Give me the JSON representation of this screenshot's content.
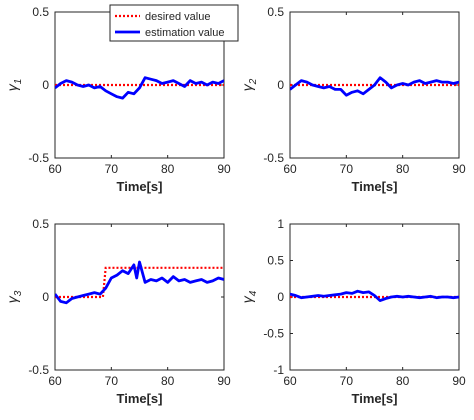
{
  "chart_data": [
    {
      "type": "line",
      "xlabel": "Time[s]",
      "ylabel": "γ1",
      "xlim": [
        60,
        90
      ],
      "ylim": [
        -0.5,
        0.5
      ],
      "xticks": [
        60,
        70,
        80,
        90
      ],
      "yticks": [
        -0.5,
        0,
        0.5
      ],
      "yticklabels": [
        "-0.5",
        "0",
        "0.5"
      ],
      "grid": false,
      "legend": "top-center",
      "series": [
        {
          "name": "desired value",
          "color": "#ff0000",
          "style": "dotted",
          "x": [
            60,
            90
          ],
          "y": [
            0,
            0
          ]
        },
        {
          "name": "estimation value",
          "color": "#0000ff",
          "style": "solid",
          "x": [
            60,
            61,
            62,
            63,
            64,
            65,
            66,
            67,
            68,
            69,
            70,
            71,
            72,
            73,
            74,
            75,
            76,
            77,
            78,
            79,
            80,
            81,
            82,
            83,
            84,
            85,
            86,
            87,
            88,
            89,
            90
          ],
          "y": [
            -0.02,
            0.01,
            0.03,
            0.02,
            0.0,
            -0.01,
            0.0,
            -0.02,
            -0.01,
            -0.04,
            -0.06,
            -0.08,
            -0.09,
            -0.05,
            -0.06,
            -0.02,
            0.05,
            0.04,
            0.03,
            0.01,
            0.02,
            0.03,
            0.01,
            -0.01,
            0.03,
            0.01,
            0.02,
            0.0,
            0.02,
            0.01,
            0.03
          ]
        }
      ]
    },
    {
      "type": "line",
      "xlabel": "Time[s]",
      "ylabel": "γ2",
      "xlim": [
        60,
        90
      ],
      "ylim": [
        -0.5,
        0.5
      ],
      "xticks": [
        60,
        70,
        80,
        90
      ],
      "yticks": [
        -0.5,
        0,
        0.5
      ],
      "yticklabels": [
        "-0.5",
        "0",
        "0.5"
      ],
      "grid": false,
      "series": [
        {
          "name": "desired value",
          "color": "#ff0000",
          "style": "dotted",
          "x": [
            60,
            90
          ],
          "y": [
            0,
            0
          ]
        },
        {
          "name": "estimation value",
          "color": "#0000ff",
          "style": "solid",
          "x": [
            60,
            61,
            62,
            63,
            64,
            65,
            66,
            67,
            68,
            69,
            70,
            71,
            72,
            73,
            74,
            75,
            76,
            77,
            78,
            79,
            80,
            81,
            82,
            83,
            84,
            85,
            86,
            87,
            88,
            89,
            90
          ],
          "y": [
            -0.03,
            0.0,
            0.03,
            0.02,
            0.0,
            -0.01,
            -0.02,
            -0.01,
            -0.03,
            -0.03,
            -0.07,
            -0.05,
            -0.04,
            -0.06,
            -0.03,
            0.0,
            0.05,
            0.02,
            -0.02,
            0.0,
            0.01,
            0.0,
            0.02,
            0.03,
            0.01,
            0.02,
            0.03,
            0.02,
            0.02,
            0.01,
            0.02
          ]
        }
      ]
    },
    {
      "type": "line",
      "xlabel": "Time[s]",
      "ylabel": "γ3",
      "xlim": [
        60,
        90
      ],
      "ylim": [
        -0.5,
        0.5
      ],
      "xticks": [
        60,
        70,
        80,
        90
      ],
      "yticks": [
        -0.5,
        0,
        0.5
      ],
      "yticklabels": [
        "-0.5",
        "0",
        "0.5"
      ],
      "grid": false,
      "series": [
        {
          "name": "desired value",
          "color": "#ff0000",
          "style": "dotted",
          "x": [
            60,
            68.5,
            69,
            90
          ],
          "y": [
            0,
            0,
            0.2,
            0.2
          ]
        },
        {
          "name": "estimation value",
          "color": "#0000ff",
          "style": "solid",
          "x": [
            60,
            61,
            62,
            63,
            64,
            65,
            66,
            67,
            68,
            69,
            70,
            71,
            72,
            73,
            74,
            74.5,
            75,
            76,
            77,
            78,
            79,
            80,
            81,
            82,
            83,
            84,
            85,
            86,
            87,
            88,
            89,
            90
          ],
          "y": [
            0.02,
            -0.03,
            -0.04,
            -0.01,
            0.0,
            0.01,
            0.02,
            0.03,
            0.02,
            0.06,
            0.13,
            0.15,
            0.18,
            0.16,
            0.22,
            0.13,
            0.24,
            0.1,
            0.12,
            0.11,
            0.13,
            0.1,
            0.14,
            0.11,
            0.12,
            0.1,
            0.11,
            0.12,
            0.1,
            0.11,
            0.13,
            0.12
          ]
        }
      ]
    },
    {
      "type": "line",
      "xlabel": "Time[s]",
      "ylabel": "γ4",
      "xlim": [
        60,
        90
      ],
      "ylim": [
        -1,
        1
      ],
      "xticks": [
        60,
        70,
        80,
        90
      ],
      "yticks": [
        -1,
        -0.5,
        0,
        0.5,
        1
      ],
      "yticklabels": [
        "-1",
        "-0.5",
        "0",
        "0.5",
        "1"
      ],
      "grid": false,
      "series": [
        {
          "name": "desired value",
          "color": "#ff0000",
          "style": "dotted",
          "x": [
            60,
            90
          ],
          "y": [
            0,
            0
          ]
        },
        {
          "name": "estimation value",
          "color": "#0000ff",
          "style": "solid",
          "x": [
            60,
            61,
            62,
            63,
            64,
            65,
            66,
            67,
            68,
            69,
            70,
            71,
            72,
            73,
            74,
            75,
            76,
            77,
            78,
            79,
            80,
            81,
            82,
            83,
            84,
            85,
            86,
            87,
            88,
            89,
            90
          ],
          "y": [
            0.04,
            0.02,
            -0.01,
            0.0,
            0.01,
            0.02,
            0.01,
            0.02,
            0.03,
            0.04,
            0.06,
            0.05,
            0.08,
            0.06,
            0.07,
            0.02,
            -0.05,
            -0.02,
            0.0,
            0.01,
            0.0,
            0.01,
            0.0,
            -0.01,
            0.0,
            0.01,
            -0.01,
            0.0,
            0.0,
            -0.01,
            0.0
          ]
        }
      ]
    }
  ]
}
